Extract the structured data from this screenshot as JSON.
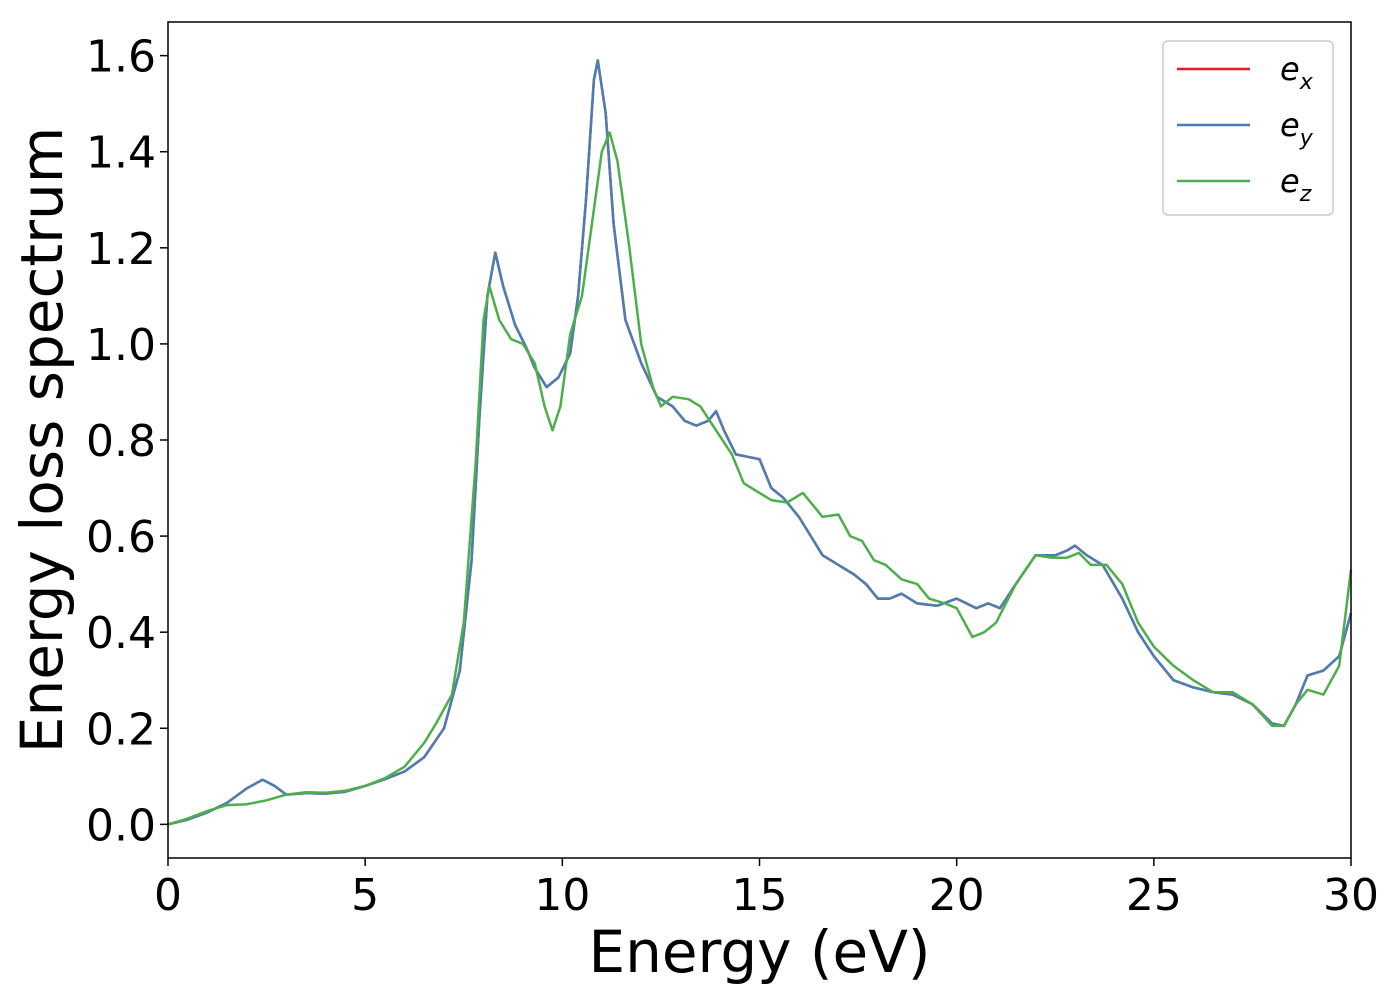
{
  "chart_data": {
    "type": "line",
    "xlabel": "Energy (eV)",
    "ylabel": "Energy loss spectrum",
    "xlim": [
      0,
      30
    ],
    "ylim": [
      -0.07,
      1.67
    ],
    "xticks": [
      "0",
      "5",
      "10",
      "15",
      "20",
      "25",
      "30"
    ],
    "yticks": [
      "0.0",
      "0.2",
      "0.4",
      "0.6",
      "0.8",
      "1.0",
      "1.2",
      "1.4",
      "1.6"
    ],
    "grid": false,
    "legend_position": "top-right",
    "series": [
      {
        "name": "e",
        "subscript": "x",
        "color": "#e41a1c",
        "points": [
          [
            0,
            0.0
          ],
          [
            0.5,
            0.01
          ],
          [
            1.0,
            0.025
          ],
          [
            1.5,
            0.045
          ],
          [
            2.0,
            0.075
          ],
          [
            2.4,
            0.093
          ],
          [
            2.7,
            0.08
          ],
          [
            3.0,
            0.062
          ],
          [
            3.5,
            0.065
          ],
          [
            4.0,
            0.064
          ],
          [
            4.5,
            0.068
          ],
          [
            5.0,
            0.08
          ],
          [
            5.5,
            0.094
          ],
          [
            6.0,
            0.11
          ],
          [
            6.5,
            0.14
          ],
          [
            7.0,
            0.2
          ],
          [
            7.4,
            0.32
          ],
          [
            7.7,
            0.55
          ],
          [
            7.9,
            0.85
          ],
          [
            8.1,
            1.1
          ],
          [
            8.3,
            1.19
          ],
          [
            8.5,
            1.12
          ],
          [
            8.8,
            1.04
          ],
          [
            9.1,
            0.99
          ],
          [
            9.3,
            0.95
          ],
          [
            9.6,
            0.91
          ],
          [
            9.9,
            0.93
          ],
          [
            10.2,
            0.98
          ],
          [
            10.4,
            1.1
          ],
          [
            10.6,
            1.3
          ],
          [
            10.8,
            1.55
          ],
          [
            10.9,
            1.59
          ],
          [
            11.1,
            1.48
          ],
          [
            11.3,
            1.25
          ],
          [
            11.6,
            1.05
          ],
          [
            12.0,
            0.96
          ],
          [
            12.4,
            0.89
          ],
          [
            12.8,
            0.87
          ],
          [
            13.1,
            0.84
          ],
          [
            13.4,
            0.83
          ],
          [
            13.7,
            0.84
          ],
          [
            13.9,
            0.86
          ],
          [
            14.1,
            0.82
          ],
          [
            14.4,
            0.77
          ],
          [
            14.7,
            0.765
          ],
          [
            15.0,
            0.76
          ],
          [
            15.3,
            0.7
          ],
          [
            15.6,
            0.68
          ],
          [
            16.0,
            0.64
          ],
          [
            16.3,
            0.6
          ],
          [
            16.6,
            0.56
          ],
          [
            17.0,
            0.54
          ],
          [
            17.4,
            0.52
          ],
          [
            17.7,
            0.5
          ],
          [
            18.0,
            0.47
          ],
          [
            18.3,
            0.47
          ],
          [
            18.6,
            0.48
          ],
          [
            19.0,
            0.46
          ],
          [
            19.5,
            0.455
          ],
          [
            20.0,
            0.47
          ],
          [
            20.5,
            0.45
          ],
          [
            20.8,
            0.46
          ],
          [
            21.1,
            0.45
          ],
          [
            21.5,
            0.5
          ],
          [
            22.0,
            0.56
          ],
          [
            22.5,
            0.56
          ],
          [
            22.8,
            0.57
          ],
          [
            23.0,
            0.58
          ],
          [
            23.3,
            0.56
          ],
          [
            23.7,
            0.54
          ],
          [
            24.2,
            0.47
          ],
          [
            24.6,
            0.4
          ],
          [
            25.0,
            0.35
          ],
          [
            25.5,
            0.3
          ],
          [
            26.0,
            0.285
          ],
          [
            26.5,
            0.275
          ],
          [
            27.0,
            0.27
          ],
          [
            27.5,
            0.25
          ],
          [
            28.0,
            0.21
          ],
          [
            28.3,
            0.205
          ],
          [
            28.6,
            0.25
          ],
          [
            28.9,
            0.31
          ],
          [
            29.3,
            0.32
          ],
          [
            29.7,
            0.35
          ],
          [
            30.0,
            0.44
          ]
        ]
      },
      {
        "name": "e",
        "subscript": "y",
        "color": "#4a7fb5",
        "points": [
          [
            0,
            0.0
          ],
          [
            0.5,
            0.01
          ],
          [
            1.0,
            0.025
          ],
          [
            1.5,
            0.045
          ],
          [
            2.0,
            0.075
          ],
          [
            2.4,
            0.093
          ],
          [
            2.7,
            0.08
          ],
          [
            3.0,
            0.062
          ],
          [
            3.5,
            0.065
          ],
          [
            4.0,
            0.064
          ],
          [
            4.5,
            0.068
          ],
          [
            5.0,
            0.08
          ],
          [
            5.5,
            0.094
          ],
          [
            6.0,
            0.11
          ],
          [
            6.5,
            0.14
          ],
          [
            7.0,
            0.2
          ],
          [
            7.4,
            0.32
          ],
          [
            7.7,
            0.55
          ],
          [
            7.9,
            0.85
          ],
          [
            8.1,
            1.1
          ],
          [
            8.3,
            1.19
          ],
          [
            8.5,
            1.12
          ],
          [
            8.8,
            1.04
          ],
          [
            9.1,
            0.99
          ],
          [
            9.3,
            0.95
          ],
          [
            9.6,
            0.91
          ],
          [
            9.9,
            0.93
          ],
          [
            10.2,
            0.98
          ],
          [
            10.4,
            1.1
          ],
          [
            10.6,
            1.3
          ],
          [
            10.8,
            1.55
          ],
          [
            10.9,
            1.59
          ],
          [
            11.1,
            1.48
          ],
          [
            11.3,
            1.25
          ],
          [
            11.6,
            1.05
          ],
          [
            12.0,
            0.96
          ],
          [
            12.4,
            0.89
          ],
          [
            12.8,
            0.87
          ],
          [
            13.1,
            0.84
          ],
          [
            13.4,
            0.83
          ],
          [
            13.7,
            0.84
          ],
          [
            13.9,
            0.86
          ],
          [
            14.1,
            0.82
          ],
          [
            14.4,
            0.77
          ],
          [
            14.7,
            0.765
          ],
          [
            15.0,
            0.76
          ],
          [
            15.3,
            0.7
          ],
          [
            15.6,
            0.68
          ],
          [
            16.0,
            0.64
          ],
          [
            16.3,
            0.6
          ],
          [
            16.6,
            0.56
          ],
          [
            17.0,
            0.54
          ],
          [
            17.4,
            0.52
          ],
          [
            17.7,
            0.5
          ],
          [
            18.0,
            0.47
          ],
          [
            18.3,
            0.47
          ],
          [
            18.6,
            0.48
          ],
          [
            19.0,
            0.46
          ],
          [
            19.5,
            0.455
          ],
          [
            20.0,
            0.47
          ],
          [
            20.5,
            0.45
          ],
          [
            20.8,
            0.46
          ],
          [
            21.1,
            0.45
          ],
          [
            21.5,
            0.5
          ],
          [
            22.0,
            0.56
          ],
          [
            22.5,
            0.56
          ],
          [
            22.8,
            0.57
          ],
          [
            23.0,
            0.58
          ],
          [
            23.3,
            0.56
          ],
          [
            23.7,
            0.54
          ],
          [
            24.2,
            0.47
          ],
          [
            24.6,
            0.4
          ],
          [
            25.0,
            0.35
          ],
          [
            25.5,
            0.3
          ],
          [
            26.0,
            0.285
          ],
          [
            26.5,
            0.275
          ],
          [
            27.0,
            0.27
          ],
          [
            27.5,
            0.25
          ],
          [
            28.0,
            0.21
          ],
          [
            28.3,
            0.205
          ],
          [
            28.6,
            0.25
          ],
          [
            28.9,
            0.31
          ],
          [
            29.3,
            0.32
          ],
          [
            29.7,
            0.35
          ],
          [
            30.0,
            0.44
          ]
        ]
      },
      {
        "name": "e",
        "subscript": "z",
        "color": "#4daf4a",
        "points": [
          [
            0,
            0.0
          ],
          [
            0.5,
            0.012
          ],
          [
            1.0,
            0.028
          ],
          [
            1.5,
            0.04
          ],
          [
            2.0,
            0.042
          ],
          [
            2.5,
            0.05
          ],
          [
            3.0,
            0.062
          ],
          [
            3.5,
            0.067
          ],
          [
            4.0,
            0.066
          ],
          [
            4.5,
            0.07
          ],
          [
            5.0,
            0.08
          ],
          [
            5.5,
            0.096
          ],
          [
            6.0,
            0.12
          ],
          [
            6.5,
            0.17
          ],
          [
            6.8,
            0.21
          ],
          [
            7.2,
            0.27
          ],
          [
            7.5,
            0.42
          ],
          [
            7.8,
            0.75
          ],
          [
            8.0,
            1.05
          ],
          [
            8.15,
            1.12
          ],
          [
            8.4,
            1.05
          ],
          [
            8.7,
            1.01
          ],
          [
            9.0,
            1.0
          ],
          [
            9.3,
            0.96
          ],
          [
            9.55,
            0.87
          ],
          [
            9.75,
            0.82
          ],
          [
            9.95,
            0.87
          ],
          [
            10.2,
            1.02
          ],
          [
            10.5,
            1.1
          ],
          [
            10.8,
            1.28
          ],
          [
            11.0,
            1.4
          ],
          [
            11.2,
            1.44
          ],
          [
            11.4,
            1.38
          ],
          [
            11.7,
            1.2
          ],
          [
            12.0,
            1.0
          ],
          [
            12.3,
            0.91
          ],
          [
            12.5,
            0.87
          ],
          [
            12.8,
            0.89
          ],
          [
            13.2,
            0.885
          ],
          [
            13.5,
            0.87
          ],
          [
            13.9,
            0.82
          ],
          [
            14.3,
            0.77
          ],
          [
            14.6,
            0.71
          ],
          [
            15.0,
            0.69
          ],
          [
            15.3,
            0.675
          ],
          [
            15.7,
            0.67
          ],
          [
            16.1,
            0.69
          ],
          [
            16.4,
            0.66
          ],
          [
            16.6,
            0.64
          ],
          [
            17.0,
            0.645
          ],
          [
            17.3,
            0.6
          ],
          [
            17.6,
            0.59
          ],
          [
            17.9,
            0.55
          ],
          [
            18.2,
            0.54
          ],
          [
            18.6,
            0.51
          ],
          [
            19.0,
            0.5
          ],
          [
            19.3,
            0.47
          ],
          [
            19.7,
            0.46
          ],
          [
            20.0,
            0.45
          ],
          [
            20.4,
            0.39
          ],
          [
            20.7,
            0.4
          ],
          [
            21.0,
            0.42
          ],
          [
            21.5,
            0.5
          ],
          [
            22.0,
            0.56
          ],
          [
            22.4,
            0.555
          ],
          [
            22.8,
            0.555
          ],
          [
            23.1,
            0.565
          ],
          [
            23.4,
            0.54
          ],
          [
            23.8,
            0.54
          ],
          [
            24.2,
            0.5
          ],
          [
            24.6,
            0.42
          ],
          [
            25.0,
            0.37
          ],
          [
            25.5,
            0.33
          ],
          [
            26.0,
            0.3
          ],
          [
            26.5,
            0.275
          ],
          [
            27.0,
            0.275
          ],
          [
            27.5,
            0.25
          ],
          [
            28.0,
            0.205
          ],
          [
            28.3,
            0.205
          ],
          [
            28.6,
            0.25
          ],
          [
            28.9,
            0.28
          ],
          [
            29.3,
            0.27
          ],
          [
            29.7,
            0.33
          ],
          [
            30.0,
            0.53
          ]
        ]
      }
    ]
  }
}
